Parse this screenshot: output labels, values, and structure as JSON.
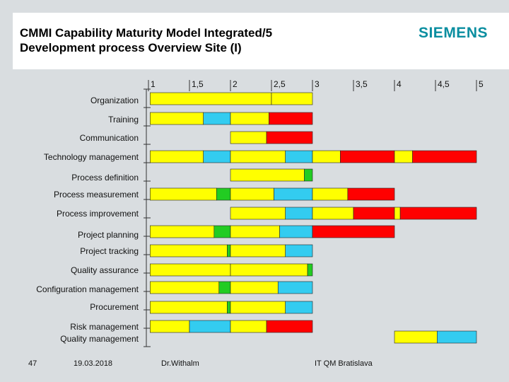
{
  "header": {
    "title_line1": "CMMI Capability Maturity Model Integrated/5",
    "title_line2": "Development process Overview Site (I)",
    "logo": "SIEMENS",
    "logo_color": "#0a8ea0"
  },
  "footer": {
    "page_number": "47",
    "date": "19.03.2018",
    "author": "Dr.Withalm",
    "department": "IT QM Bratislava"
  },
  "chart_data": {
    "type": "bar",
    "subtype": "horizontal-stacked-segments",
    "xticks": [
      {
        "value": 1,
        "label": "1"
      },
      {
        "value": 1.5,
        "label": "1,5"
      },
      {
        "value": 2,
        "label": "2"
      },
      {
        "value": 2.5,
        "label": "2,5"
      },
      {
        "value": 3,
        "label": "3"
      },
      {
        "value": 3.5,
        "label": "3,5"
      },
      {
        "value": 4,
        "label": "4"
      },
      {
        "value": 4.5,
        "label": "4,5"
      },
      {
        "value": 5,
        "label": "5"
      }
    ],
    "xlim": [
      1,
      5
    ],
    "grid": false,
    "legend": "none",
    "colors": {
      "yellow": "#ffff00",
      "cyan": "#33ccf0",
      "red": "#ff0000",
      "green": "#22cc22"
    },
    "rows": [
      {
        "label": "Organization",
        "segments": [
          [
            1.02,
            2.5,
            "yellow"
          ],
          [
            2.5,
            3.0,
            "yellow"
          ]
        ]
      },
      {
        "label": "Training",
        "segments": [
          [
            1.02,
            1.67,
            "yellow"
          ],
          [
            1.67,
            2.0,
            "cyan"
          ],
          [
            2.0,
            2.47,
            "yellow"
          ],
          [
            2.47,
            3.0,
            "red"
          ]
        ]
      },
      {
        "label": "Communication",
        "segments": [
          [
            2.0,
            2.44,
            "yellow"
          ],
          [
            2.44,
            3.0,
            "red"
          ]
        ]
      },
      {
        "label": "Technology management",
        "segments": [
          [
            1.02,
            1.67,
            "yellow"
          ],
          [
            1.67,
            2.0,
            "cyan"
          ],
          [
            2.0,
            2.67,
            "yellow"
          ],
          [
            2.67,
            3.0,
            "cyan"
          ],
          [
            3.0,
            3.34,
            "yellow"
          ],
          [
            3.34,
            4.0,
            "red"
          ],
          [
            4.0,
            4.22,
            "yellow"
          ],
          [
            4.22,
            5.0,
            "red"
          ]
        ]
      },
      {
        "label": "Process definition",
        "segments": [
          [
            2.0,
            2.9,
            "yellow"
          ],
          [
            2.9,
            3.0,
            "green"
          ]
        ]
      },
      {
        "label": "Process measurement",
        "segments": [
          [
            1.02,
            1.83,
            "yellow"
          ],
          [
            1.83,
            2.0,
            "green"
          ],
          [
            2.0,
            2.53,
            "yellow"
          ],
          [
            2.53,
            3.0,
            "cyan"
          ],
          [
            3.0,
            3.43,
            "yellow"
          ],
          [
            3.43,
            4.0,
            "red"
          ]
        ]
      },
      {
        "label": "Process improvement",
        "segments": [
          [
            2.0,
            2.67,
            "yellow"
          ],
          [
            2.67,
            3.0,
            "cyan"
          ],
          [
            3.0,
            3.5,
            "yellow"
          ],
          [
            3.5,
            4.0,
            "red"
          ],
          [
            4.0,
            4.07,
            "yellow"
          ],
          [
            4.07,
            5.0,
            "red"
          ]
        ]
      },
      {
        "label": "Project planning",
        "segments": [
          [
            1.02,
            1.8,
            "yellow"
          ],
          [
            1.8,
            2.0,
            "green"
          ],
          [
            2.0,
            2.6,
            "yellow"
          ],
          [
            2.6,
            3.0,
            "cyan"
          ],
          [
            3.0,
            4.0,
            "red"
          ]
        ]
      },
      {
        "label": "Project tracking",
        "segments": [
          [
            1.02,
            1.96,
            "yellow"
          ],
          [
            1.96,
            2.0,
            "green"
          ],
          [
            2.0,
            2.67,
            "yellow"
          ],
          [
            2.67,
            3.0,
            "cyan"
          ]
        ]
      },
      {
        "label": "Quality assurance",
        "segments": [
          [
            1.02,
            2.0,
            "yellow"
          ],
          [
            2.0,
            2.94,
            "yellow"
          ],
          [
            2.94,
            3.0,
            "green"
          ]
        ]
      },
      {
        "label": "Configuration management",
        "segments": [
          [
            1.02,
            1.86,
            "yellow"
          ],
          [
            1.86,
            2.0,
            "green"
          ],
          [
            2.0,
            2.58,
            "yellow"
          ],
          [
            2.58,
            3.0,
            "cyan"
          ]
        ]
      },
      {
        "label": "Procurement",
        "segments": [
          [
            1.02,
            1.96,
            "yellow"
          ],
          [
            1.96,
            2.0,
            "green"
          ],
          [
            2.0,
            2.67,
            "yellow"
          ],
          [
            2.67,
            3.0,
            "cyan"
          ]
        ]
      },
      {
        "label": "Risk management",
        "segments": [
          [
            1.02,
            1.5,
            "yellow"
          ],
          [
            1.5,
            2.0,
            "cyan"
          ],
          [
            2.0,
            2.44,
            "yellow"
          ],
          [
            2.44,
            3.0,
            "red"
          ]
        ]
      },
      {
        "label": "Quality management",
        "segments": [
          [
            4.0,
            4.52,
            "yellow"
          ],
          [
            4.52,
            5.0,
            "cyan"
          ]
        ]
      }
    ]
  }
}
